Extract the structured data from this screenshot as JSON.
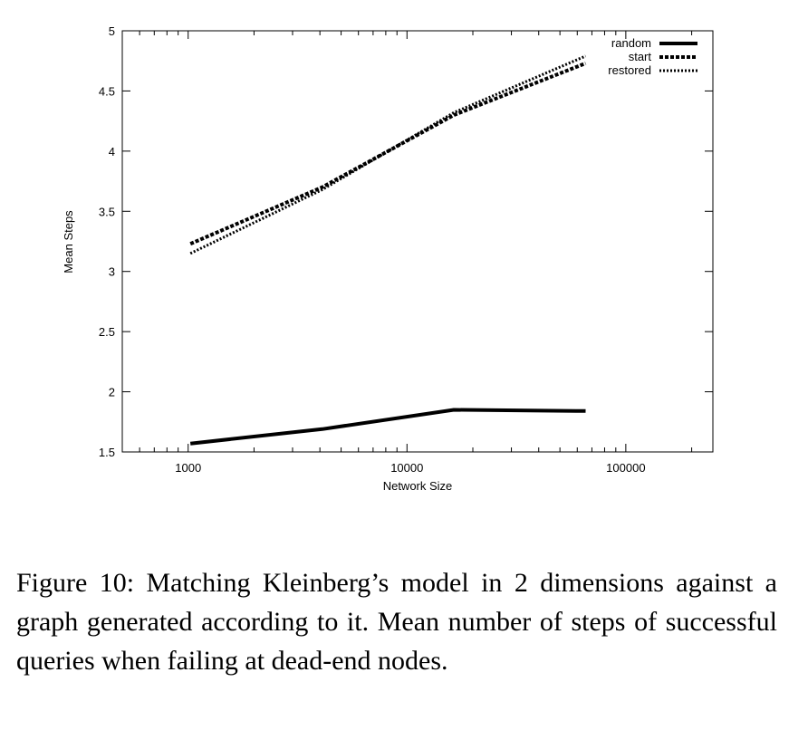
{
  "chart_data": {
    "type": "line",
    "xlabel": "Network Size",
    "ylabel": "Mean Steps",
    "x_scale": "log",
    "xlim": [
      500,
      250000
    ],
    "ylim": [
      1.5,
      5
    ],
    "x_ticks": [
      {
        "value": 1000,
        "label": "1000"
      },
      {
        "value": 10000,
        "label": "10000"
      },
      {
        "value": 100000,
        "label": "100000"
      }
    ],
    "y_ticks": [
      {
        "value": 1.5,
        "label": "1.5"
      },
      {
        "value": 2,
        "label": "2"
      },
      {
        "value": 2.5,
        "label": "2.5"
      },
      {
        "value": 3,
        "label": "3"
      },
      {
        "value": 3.5,
        "label": "3.5"
      },
      {
        "value": 4,
        "label": "4"
      },
      {
        "value": 4.5,
        "label": "4.5"
      },
      {
        "value": 5,
        "label": "5"
      }
    ],
    "grid": false,
    "legend": "top-right",
    "series": [
      {
        "name": "random",
        "style": "solid",
        "x": [
          1024,
          4096,
          16384,
          65536
        ],
        "y": [
          1.57,
          1.69,
          1.85,
          1.84
        ]
      },
      {
        "name": "start",
        "style": "dashed",
        "x": [
          1024,
          4096,
          16384,
          65536
        ],
        "y": [
          3.23,
          3.7,
          4.3,
          4.73
        ]
      },
      {
        "name": "restored",
        "style": "dotted",
        "x": [
          1024,
          4096,
          16384,
          65536
        ],
        "y": [
          3.15,
          3.68,
          4.32,
          4.79
        ]
      }
    ]
  },
  "caption": "Figure 10: Matching Kleinberg’s model in 2 dimensions against a graph generated according to it. Mean number of steps of successful queries when failing at dead-end nodes."
}
